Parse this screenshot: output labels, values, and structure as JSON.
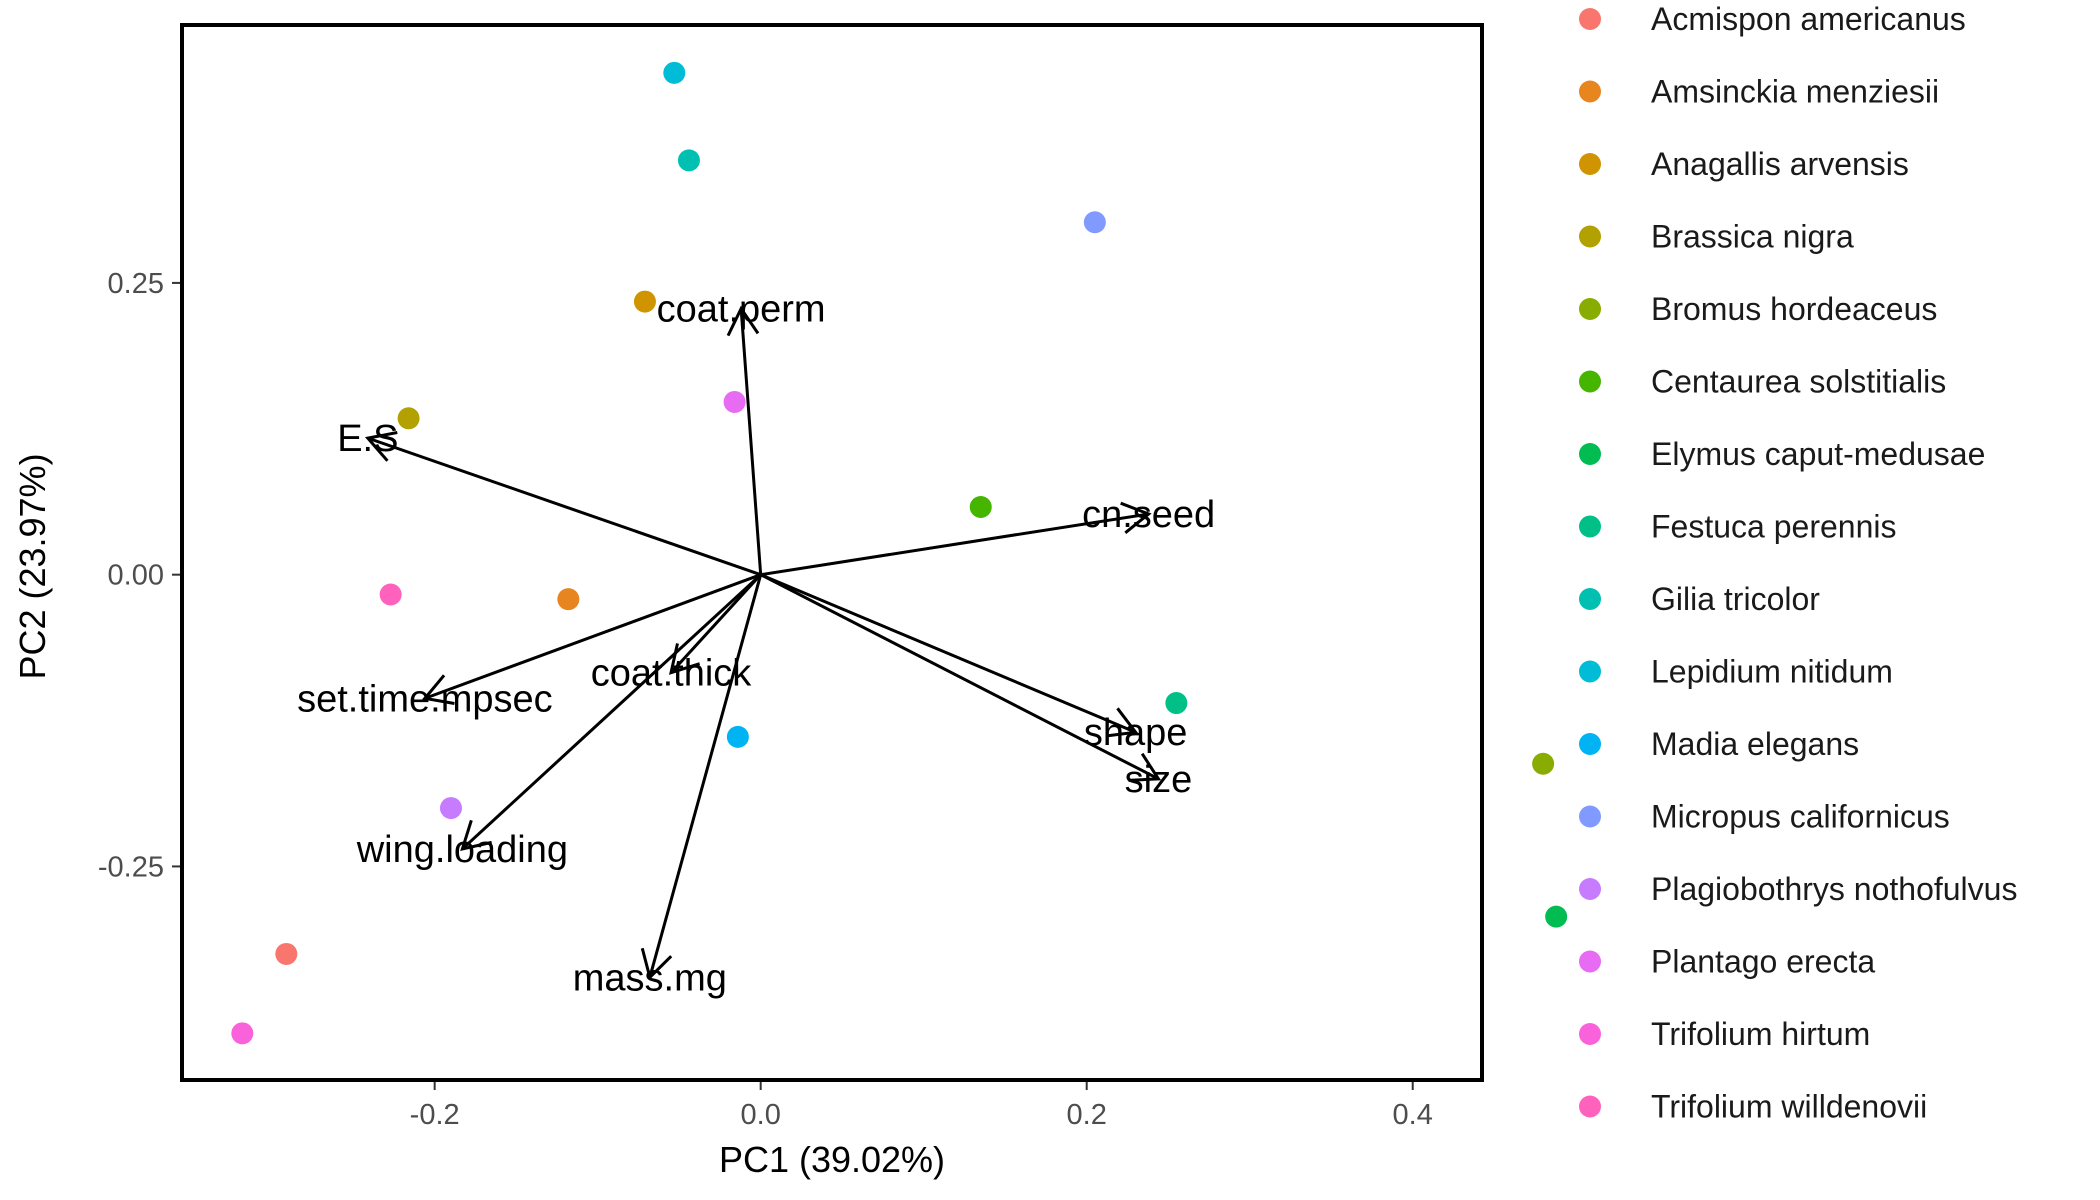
{
  "chart_data": {
    "type": "scatter",
    "subtype": "pca-biplot",
    "xlabel": "PC1 (39.02%)",
    "ylabel": "PC2 (23.97%)",
    "xlim": [
      -0.355,
      0.4425
    ],
    "ylim": [
      -0.433,
      0.471
    ],
    "x_ticks": [
      {
        "value": -0.2,
        "label": "-0.2"
      },
      {
        "value": 0.0,
        "label": "0.0"
      },
      {
        "value": 0.2,
        "label": "0.2"
      },
      {
        "value": 0.4,
        "label": "0.4"
      }
    ],
    "y_ticks": [
      {
        "value": -0.25,
        "label": "-0.25"
      },
      {
        "value": 0.0,
        "label": "0.00"
      },
      {
        "value": 0.25,
        "label": "0.25"
      }
    ],
    "grid": false,
    "legend_position": "right",
    "points": [
      {
        "species": "Acmispon americanus",
        "x": -0.291,
        "y": -0.325,
        "color": "#F8766D"
      },
      {
        "species": "Amsinckia menziesii",
        "x": -0.118,
        "y": -0.021,
        "color": "#E7851E"
      },
      {
        "species": "Anagallis arvensis",
        "x": -0.071,
        "y": 0.234,
        "color": "#D09400"
      },
      {
        "species": "Brassica nigra",
        "x": -0.216,
        "y": 0.134,
        "color": "#B2A100"
      },
      {
        "species": "Bromus hordeaceus",
        "x": 0.48,
        "y": -0.162,
        "color": "#89AC00"
      },
      {
        "species": "Centaurea solstitialis",
        "x": 0.135,
        "y": 0.058,
        "color": "#45B500"
      },
      {
        "species": "Elymus caput-medusae",
        "x": 0.488,
        "y": -0.293,
        "color": "#00BC51"
      },
      {
        "species": "Festuca perennis",
        "x": 0.255,
        "y": -0.11,
        "color": "#00C087"
      },
      {
        "species": "Gilia tricolor",
        "x": -0.044,
        "y": 0.355,
        "color": "#00C0B2"
      },
      {
        "species": "Lepidium nitidum",
        "x": -0.053,
        "y": 0.43,
        "color": "#00BCD6"
      },
      {
        "species": "Madia elegans",
        "x": -0.014,
        "y": -0.139,
        "color": "#00B3F2"
      },
      {
        "species": "Micropus californicus",
        "x": 0.205,
        "y": 0.302,
        "color": "#819AFF"
      },
      {
        "species": "Plagiobothrys nothofulvus",
        "x": -0.19,
        "y": -0.2,
        "color": "#C77CFF"
      },
      {
        "species": "Plantago erecta",
        "x": -0.016,
        "y": 0.148,
        "color": "#E76BF3"
      },
      {
        "species": "Trifolium hirtum",
        "x": -0.318,
        "y": -0.393,
        "color": "#FA62DB"
      },
      {
        "species": "Trifolium willdenovii",
        "x": -0.227,
        "y": -0.017,
        "color": "#FF62BC"
      }
    ],
    "loadings": [
      {
        "name": "coat.perm",
        "x": -0.012,
        "y": 0.228
      },
      {
        "name": "E.S",
        "x": -0.241,
        "y": 0.117
      },
      {
        "name": "cn.seed",
        "x": 0.238,
        "y": 0.052
      },
      {
        "name": "coat.thick",
        "x": -0.055,
        "y": -0.084
      },
      {
        "name": "set.time.mpsec",
        "x": -0.206,
        "y": -0.106
      },
      {
        "name": "shape",
        "x": 0.23,
        "y": -0.135
      },
      {
        "name": "size",
        "x": 0.244,
        "y": -0.175
      },
      {
        "name": "wing.loading",
        "x": -0.183,
        "y": -0.235
      },
      {
        "name": "mass.mg",
        "x": -0.068,
        "y": -0.345
      }
    ],
    "legend": [
      {
        "label": "Acmispon americanus",
        "color": "#F8766D"
      },
      {
        "label": "Amsinckia menziesii",
        "color": "#E7851E"
      },
      {
        "label": "Anagallis arvensis",
        "color": "#D09400"
      },
      {
        "label": "Brassica nigra",
        "color": "#B2A100"
      },
      {
        "label": "Bromus hordeaceus",
        "color": "#89AC00"
      },
      {
        "label": "Centaurea solstitialis",
        "color": "#45B500"
      },
      {
        "label": "Elymus caput-medusae",
        "color": "#00BC51"
      },
      {
        "label": "Festuca perennis",
        "color": "#00C087"
      },
      {
        "label": "Gilia tricolor",
        "color": "#00C0B2"
      },
      {
        "label": "Lepidium nitidum",
        "color": "#00BCD6"
      },
      {
        "label": "Madia elegans",
        "color": "#00B3F2"
      },
      {
        "label": "Micropus californicus",
        "color": "#819AFF"
      },
      {
        "label": "Plagiobothrys nothofulvus",
        "color": "#C77CFF"
      },
      {
        "label": "Plantago erecta",
        "color": "#E76BF3"
      },
      {
        "label": "Trifolium hirtum",
        "color": "#FA62DB"
      },
      {
        "label": "Trifolium willdenovii",
        "color": "#FF62BC"
      }
    ]
  }
}
